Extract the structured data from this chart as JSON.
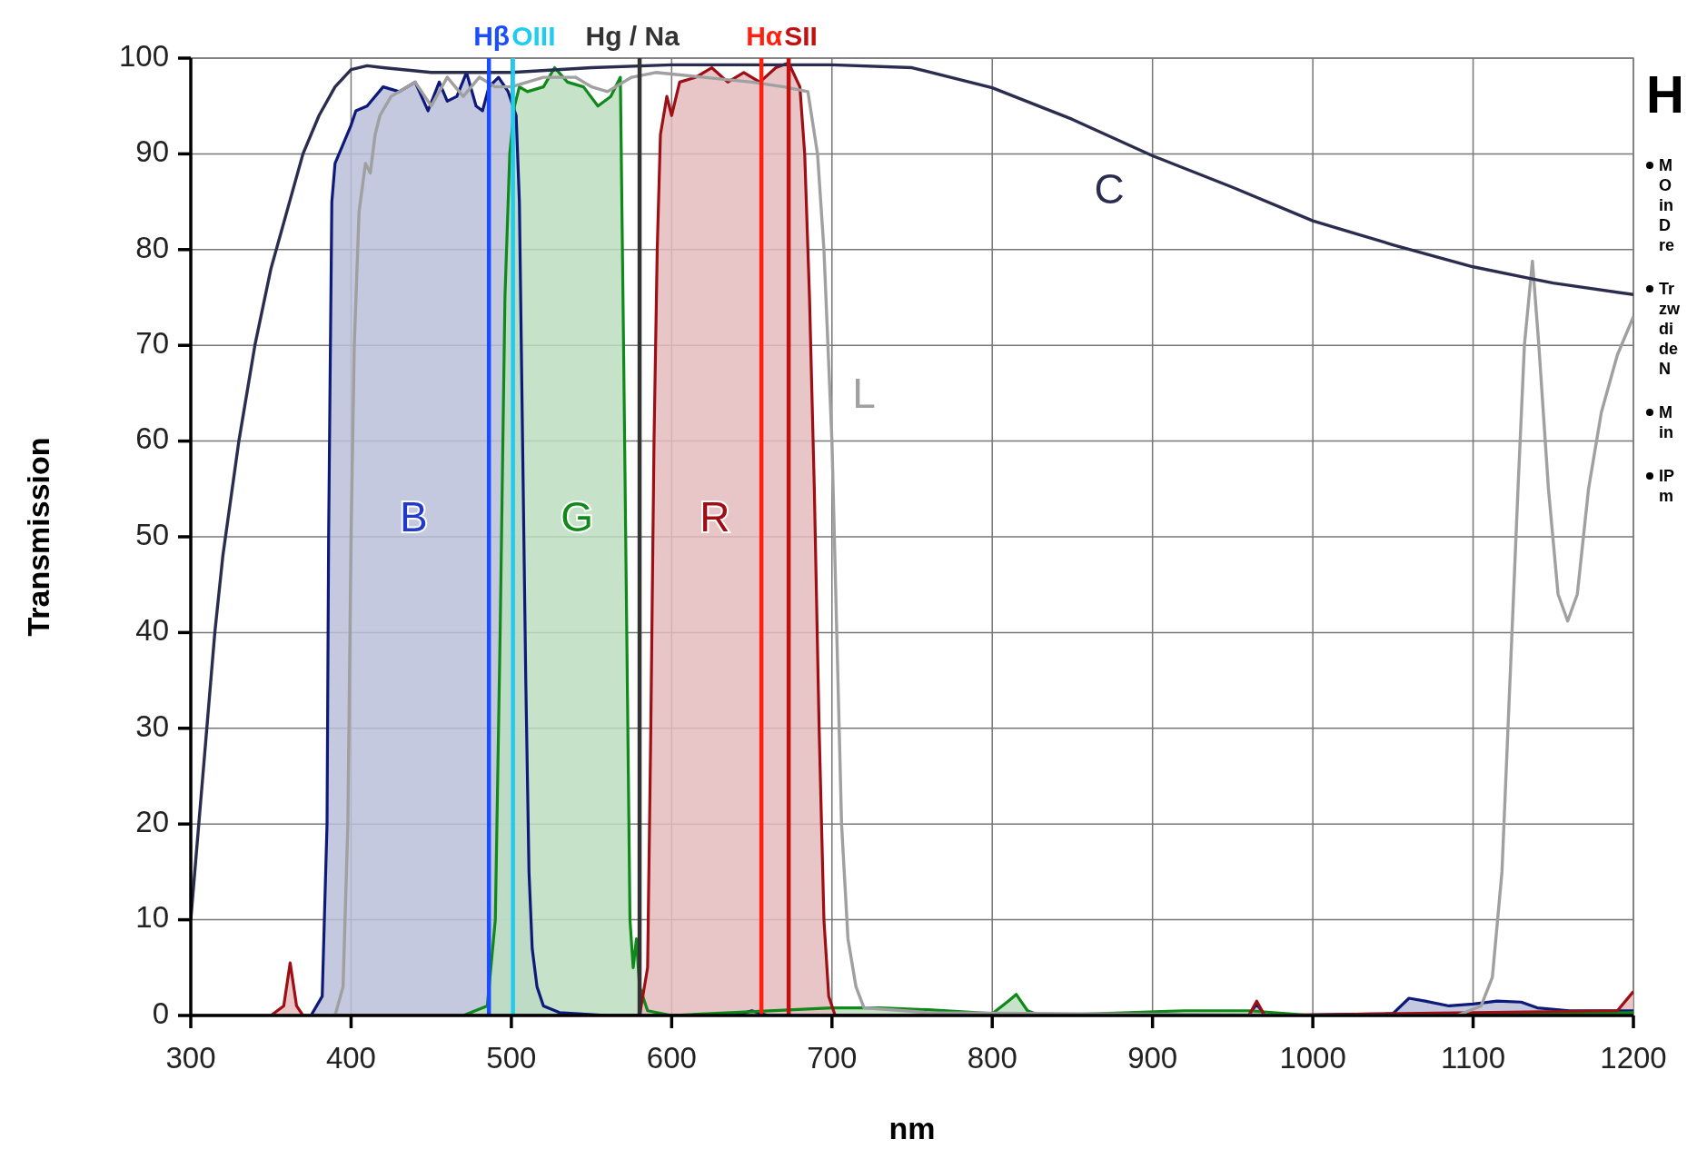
{
  "chart_data": {
    "type": "line",
    "xlabel": "nm",
    "ylabel": "Transmission",
    "xlim": [
      300,
      1200
    ],
    "ylim": [
      0,
      100
    ],
    "xticks": [
      300,
      400,
      500,
      600,
      700,
      800,
      900,
      1000,
      1100,
      1200
    ],
    "yticks": [
      0,
      10,
      20,
      30,
      40,
      50,
      60,
      70,
      80,
      90,
      100
    ],
    "grid": true,
    "marker": "none",
    "line_style": "solid",
    "series": [
      {
        "name": "B",
        "type": "area",
        "color": "#0d1a7a",
        "x": [
          375,
          382,
          385,
          386,
          387,
          388,
          390,
          395,
          400,
          403,
          410,
          420,
          430,
          440,
          448,
          455,
          460,
          466,
          472,
          478,
          482,
          486,
          492,
          498,
          503,
          505,
          507,
          509,
          511,
          513,
          516,
          520,
          530,
          560,
          640,
          650,
          660,
          960,
          965,
          970,
          1050,
          1060,
          1070,
          1085,
          1100,
          1115,
          1130,
          1140,
          1160,
          1200
        ],
        "values": [
          0,
          2,
          20,
          50,
          68,
          85,
          89,
          91,
          93,
          94.5,
          95,
          97,
          96.5,
          97.5,
          94.5,
          97.5,
          95.5,
          96,
          98.5,
          95,
          94.5,
          97,
          98,
          96.5,
          94,
          85,
          60,
          35,
          15,
          7,
          3,
          1,
          0.3,
          0,
          0,
          0.5,
          0,
          0,
          1.2,
          0,
          0.2,
          1.8,
          1.5,
          1,
          1.2,
          1.5,
          1.4,
          0.8,
          0.5,
          0.5
        ]
      },
      {
        "name": "G",
        "type": "area",
        "color": "#0f8a1a",
        "x": [
          470,
          485,
          490,
          493,
          496,
          499,
          502,
          505,
          510,
          520,
          527,
          535,
          545,
          554,
          562,
          568,
          570,
          572,
          574,
          576,
          578,
          580,
          585,
          600,
          700,
          730,
          760,
          800,
          810,
          815,
          822,
          830,
          920,
          960,
          1000,
          1200
        ],
        "values": [
          0,
          1,
          10,
          40,
          75,
          90,
          95,
          97,
          96.5,
          97,
          99,
          97.5,
          97,
          95,
          96,
          98,
          70,
          40,
          10,
          5,
          8,
          3,
          0.5,
          0,
          0.8,
          0.8,
          0.6,
          0.2,
          1.5,
          2.2,
          0.5,
          0,
          0.5,
          0.5,
          0,
          0.3
        ]
      },
      {
        "name": "R",
        "type": "area",
        "color": "#9e0e14",
        "x": [
          350,
          358,
          362,
          366,
          370,
          580,
          585,
          587,
          589,
          591,
          593,
          597,
          600,
          605,
          615,
          625,
          635,
          645,
          655,
          665,
          673,
          680,
          683,
          686,
          689,
          692,
          695,
          698,
          702,
          960,
          965,
          970,
          1190,
          1200
        ],
        "values": [
          0,
          1,
          5.5,
          1,
          0,
          0,
          5,
          30,
          60,
          80,
          92,
          96,
          94,
          97.5,
          98,
          99,
          97.5,
          98.5,
          97.5,
          99,
          99.5,
          97,
          90,
          75,
          55,
          30,
          10,
          2,
          0,
          0,
          1.5,
          0,
          0.5,
          2.5
        ]
      },
      {
        "name": "L",
        "color": "#a0a0a0",
        "x": [
          300,
          390,
          395,
          398,
          400,
          402,
          405,
          409,
          412,
          415,
          418,
          425,
          440,
          450,
          460,
          470,
          480,
          490,
          500,
          520,
          540,
          550,
          560,
          575,
          590,
          620,
          650,
          670,
          685,
          691,
          695,
          700,
          703,
          706,
          710,
          715,
          720,
          760,
          1000,
          1090,
          1105,
          1112,
          1118,
          1123,
          1128,
          1132,
          1137,
          1141,
          1147,
          1153,
          1159,
          1165,
          1172,
          1180,
          1190,
          1200
        ],
        "values": [
          0,
          0,
          3,
          20,
          50,
          70,
          84,
          89,
          88,
          92,
          94,
          96,
          97.5,
          95,
          98,
          96,
          98,
          97,
          97,
          98,
          98,
          97,
          96.5,
          98,
          98.5,
          98,
          97.5,
          97,
          96.5,
          90,
          80,
          60,
          40,
          20,
          8,
          3,
          0.8,
          0.3,
          0,
          0,
          1,
          4,
          15,
          35,
          55,
          70,
          78.8,
          70,
          55,
          44,
          41.2,
          44,
          55,
          63,
          69,
          73
        ]
      },
      {
        "name": "C",
        "color": "#2b2d4f",
        "x": [
          300,
          305,
          310,
          315,
          320,
          330,
          340,
          350,
          360,
          370,
          380,
          390,
          400,
          410,
          420,
          450,
          500,
          550,
          600,
          700,
          750,
          800,
          850,
          900,
          950,
          1000,
          1050,
          1100,
          1135,
          1150,
          1200
        ],
        "values": [
          10,
          20,
          30,
          40,
          48,
          60,
          70,
          78,
          84,
          90,
          94,
          97,
          98.8,
          99.2,
          99,
          98.5,
          98.5,
          99,
          99.3,
          99.3,
          99,
          96.9,
          93.6,
          89.8,
          86.5,
          83,
          80.5,
          78.2,
          77,
          76.5,
          75.3
        ]
      }
    ],
    "ref_lines": [
      {
        "axis": "x",
        "value": 486,
        "label": "Hβ",
        "color": "#1a4dff"
      },
      {
        "axis": "x",
        "value": 501,
        "label": "OIII",
        "color": "#22ccee"
      },
      {
        "axis": "x",
        "value": 580,
        "label": "Hg / Na",
        "color": "#333333"
      },
      {
        "axis": "x",
        "value": 656,
        "label": "Hα",
        "color": "#ff2010"
      },
      {
        "axis": "x",
        "value": 673,
        "label": "SII",
        "color": "#c01010"
      }
    ],
    "annotations": [
      "H",
      "M\nO\nin\nD\nre",
      "Tr\nzw\ndi\nde\nN",
      "M\nin",
      "IP\nm"
    ]
  }
}
